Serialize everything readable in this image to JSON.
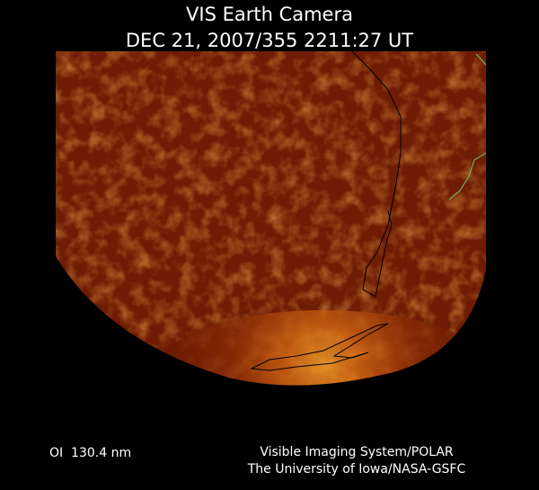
{
  "header": {
    "title": "VIS Earth Camera",
    "timestamp": "DEC 21, 2007/355 2211:27 UT"
  },
  "footer": {
    "wavelength": "OI  130.4 nm",
    "credit_line1": "Visible Imaging System/POLAR",
    "credit_line2": "The University of Iowa/NASA-GSFC"
  }
}
